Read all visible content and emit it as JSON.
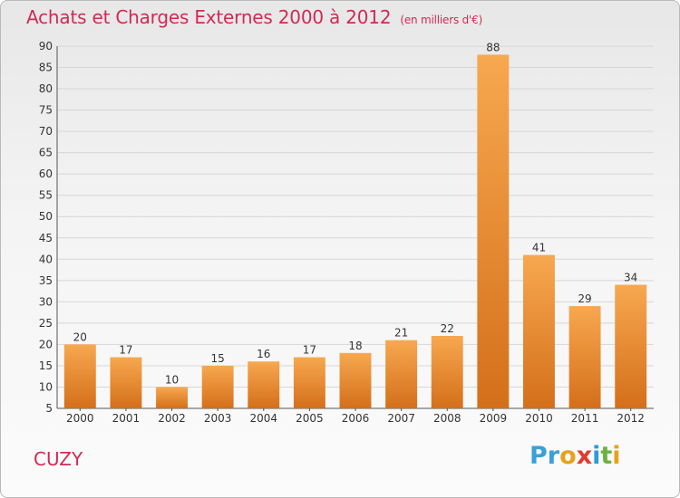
{
  "header": {
    "title": "Achats et Charges Externes 2000 à 2012",
    "subtitle": "(en milliers d'€)"
  },
  "footer": {
    "commune": "CUZY",
    "logo_letters": [
      "P",
      "r",
      "o",
      "x",
      "i",
      "t",
      "i"
    ]
  },
  "colors": {
    "title": "#d02a55",
    "bar_light": "#f7a850",
    "bar_dark": "#d46f1a",
    "grid": "#d6d6d6",
    "logo": [
      "#3aa0d8",
      "#3aa0d8",
      "#e8a21a",
      "#e23b2e",
      "#2f9bd6",
      "#6cb33f",
      "#e8a21a"
    ]
  },
  "chart_data": {
    "type": "bar",
    "title": "Achats et Charges Externes 2000 à 2012",
    "subtitle": "(en milliers d'€)",
    "categories": [
      "2000",
      "2001",
      "2002",
      "2003",
      "2004",
      "2005",
      "2006",
      "2007",
      "2008",
      "2009",
      "2010",
      "2011",
      "2012"
    ],
    "values": [
      20,
      17,
      10,
      15,
      16,
      17,
      18,
      21,
      22,
      88,
      41,
      29,
      34
    ],
    "ylim": [
      5,
      90
    ],
    "yticks": [
      5,
      10,
      15,
      20,
      25,
      30,
      35,
      40,
      45,
      50,
      55,
      60,
      65,
      70,
      75,
      80,
      85,
      90
    ],
    "grid": true,
    "legend": "none"
  }
}
